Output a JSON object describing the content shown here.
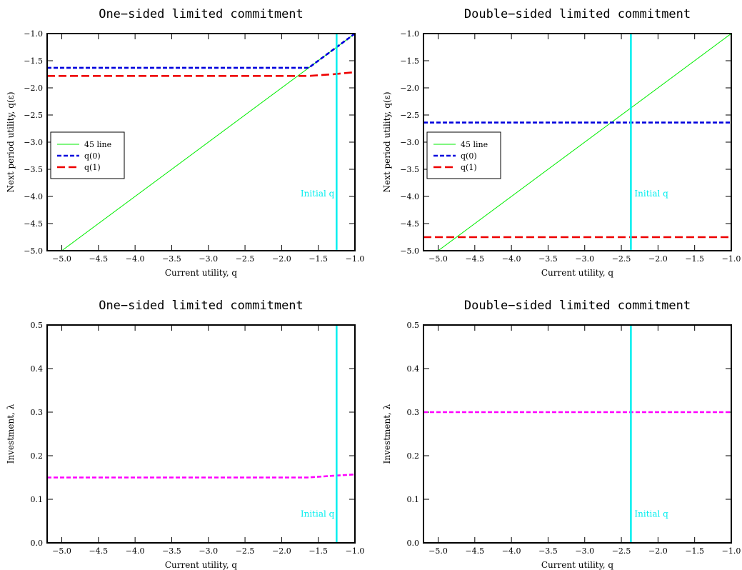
{
  "chart_data": [
    {
      "type": "line",
      "title": "One−sided limited commitment",
      "xlabel": "Current utility, q",
      "ylabel": "Next period utility, q(ε)",
      "xlim": [
        -5.2,
        -1.0
      ],
      "ylim": [
        -5.0,
        -1.0
      ],
      "xticks": [
        -5.0,
        -4.5,
        -4.0,
        -3.5,
        -3.0,
        -2.5,
        -2.0,
        -1.5,
        -1.0
      ],
      "yticks": [
        -5.0,
        -4.5,
        -4.0,
        -3.5,
        -3.0,
        -2.5,
        -2.0,
        -1.5,
        -1.0
      ],
      "xtick_labels": [
        "−5.0",
        "−4.5",
        "−4.0",
        "−3.5",
        "−3.0",
        "−2.5",
        "−2.0",
        "−1.5",
        "−1.0"
      ],
      "ytick_labels": [
        "−5.0",
        "−4.5",
        "−4.0",
        "−3.5",
        "−3.0",
        "−2.5",
        "−2.0",
        "−1.5",
        "−1.0"
      ],
      "grid": false,
      "legend": "middle-left",
      "series": [
        {
          "name": "45 line",
          "color": "#00ee00",
          "style": "solid",
          "x": [
            -5.2,
            -1.0
          ],
          "y": [
            -5.2,
            -1.0
          ]
        },
        {
          "name": "q(0)",
          "color": "#0000dd",
          "style": "dashed",
          "x": [
            -5.2,
            -1.63,
            -1.0
          ],
          "y": [
            -1.63,
            -1.63,
            -1.0
          ]
        },
        {
          "name": "q(1)",
          "color": "#ee0000",
          "style": "longdash",
          "x": [
            -5.2,
            -1.63,
            -1.3,
            -1.0
          ],
          "y": [
            -1.78,
            -1.78,
            -1.75,
            -1.71
          ]
        }
      ],
      "vline": {
        "x": -1.25,
        "color": "#00eeee"
      },
      "annotation": {
        "text": "Initial q",
        "x": -1.25,
        "y": -4.0
      }
    },
    {
      "type": "line",
      "title": "Double−sided limited commitment",
      "xlabel": "Current utility, q",
      "ylabel": "Next period utility, q(ε)",
      "xlim": [
        -5.2,
        -1.0
      ],
      "ylim": [
        -5.0,
        -1.0
      ],
      "xticks": [
        -5.0,
        -4.5,
        -4.0,
        -3.5,
        -3.0,
        -2.5,
        -2.0,
        -1.5,
        -1.0
      ],
      "yticks": [
        -5.0,
        -4.5,
        -4.0,
        -3.5,
        -3.0,
        -2.5,
        -2.0,
        -1.5,
        -1.0
      ],
      "xtick_labels": [
        "−5.0",
        "−4.5",
        "−4.0",
        "−3.5",
        "−3.0",
        "−2.5",
        "−2.0",
        "−1.5",
        "−1.0"
      ],
      "ytick_labels": [
        "−5.0",
        "−4.5",
        "−4.0",
        "−3.5",
        "−3.0",
        "−2.5",
        "−2.0",
        "−1.5",
        "−1.0"
      ],
      "grid": false,
      "legend": "middle-left",
      "series": [
        {
          "name": "45 line",
          "color": "#00ee00",
          "style": "solid",
          "x": [
            -5.2,
            -1.0
          ],
          "y": [
            -5.2,
            -1.0
          ]
        },
        {
          "name": "q(0)",
          "color": "#0000dd",
          "style": "dashed",
          "x": [
            -5.2,
            -1.0
          ],
          "y": [
            -2.64,
            -2.64
          ]
        },
        {
          "name": "q(1)",
          "color": "#ee0000",
          "style": "longdash",
          "x": [
            -5.2,
            -1.0
          ],
          "y": [
            -4.75,
            -4.75
          ]
        }
      ],
      "vline": {
        "x": -2.37,
        "color": "#00eeee"
      },
      "annotation": {
        "text": "Initial q",
        "x": -2.37,
        "y": -4.0
      }
    },
    {
      "type": "line",
      "title": "One−sided limited commitment",
      "xlabel": "Current utility, q",
      "ylabel": "Investment, λ",
      "xlim": [
        -5.2,
        -1.0
      ],
      "ylim": [
        0.0,
        0.5
      ],
      "xticks": [
        -5.0,
        -4.5,
        -4.0,
        -3.5,
        -3.0,
        -2.5,
        -2.0,
        -1.5,
        -1.0
      ],
      "yticks": [
        0.0,
        0.1,
        0.2,
        0.3,
        0.4,
        0.5
      ],
      "xtick_labels": [
        "−5.0",
        "−4.5",
        "−4.0",
        "−3.5",
        "−3.0",
        "−2.5",
        "−2.0",
        "−1.5",
        "−1.0"
      ],
      "ytick_labels": [
        "0.0",
        "0.1",
        "0.2",
        "0.3",
        "0.4",
        "0.5"
      ],
      "grid": false,
      "legend": "none",
      "series": [
        {
          "color": "#ff00ff",
          "style": "dashed",
          "x": [
            -5.2,
            -1.65,
            -1.3,
            -1.0
          ],
          "y": [
            0.15,
            0.15,
            0.154,
            0.157
          ]
        }
      ],
      "vline": {
        "x": -1.25,
        "color": "#00eeee"
      },
      "annotation": {
        "text": "Initial q",
        "x": -1.25,
        "y": 0.06
      }
    },
    {
      "type": "line",
      "title": "Double−sided limited commitment",
      "xlabel": "Current utility, q",
      "ylabel": "Investment, λ",
      "xlim": [
        -5.2,
        -1.0
      ],
      "ylim": [
        0.0,
        0.5
      ],
      "xticks": [
        -5.0,
        -4.5,
        -4.0,
        -3.5,
        -3.0,
        -2.5,
        -2.0,
        -1.5,
        -1.0
      ],
      "yticks": [
        0.0,
        0.1,
        0.2,
        0.3,
        0.4,
        0.5
      ],
      "xtick_labels": [
        "−5.0",
        "−4.5",
        "−4.0",
        "−3.5",
        "−3.0",
        "−2.5",
        "−2.0",
        "−1.5",
        "−1.0"
      ],
      "ytick_labels": [
        "0.0",
        "0.1",
        "0.2",
        "0.3",
        "0.4",
        "0.5"
      ],
      "grid": false,
      "legend": "none",
      "series": [
        {
          "color": "#ff00ff",
          "style": "dashed",
          "x": [
            -5.2,
            -1.0
          ],
          "y": [
            0.3,
            0.3
          ]
        }
      ],
      "vline": {
        "x": -2.37,
        "color": "#00eeee"
      },
      "annotation": {
        "text": "Initial q",
        "x": -2.37,
        "y": 0.06
      }
    }
  ]
}
